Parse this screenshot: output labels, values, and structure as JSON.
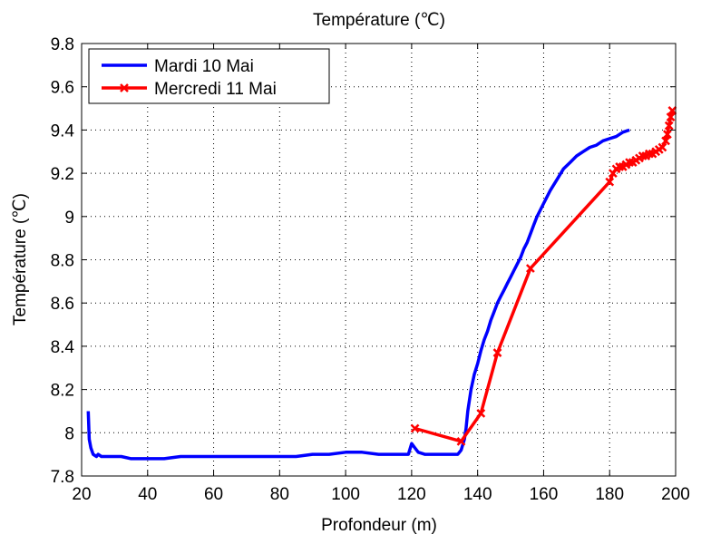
{
  "chart_data": {
    "type": "line",
    "title": "Température (℃)",
    "xlabel": "Profondeur (m)",
    "ylabel": "Température (℃)",
    "xlim": [
      20,
      200
    ],
    "ylim": [
      7.8,
      9.8
    ],
    "xticks": [
      20,
      40,
      60,
      80,
      100,
      120,
      140,
      160,
      180,
      200
    ],
    "yticks": [
      7.8,
      8,
      8.2,
      8.4,
      8.6,
      8.8,
      9,
      9.2,
      9.4,
      9.6,
      9.8
    ],
    "ytick_labels": [
      "7.8",
      "8",
      "8.2",
      "8.4",
      "8.6",
      "8.8",
      "9",
      "9.2",
      "9.4",
      "9.6",
      "9.8"
    ],
    "grid": true,
    "legend_position": "top-left",
    "series": [
      {
        "name": "Mardi 10 Mai",
        "color": "#0000ff",
        "marker": "none",
        "x": [
          22,
          22.3,
          22.8,
          23.5,
          24.5,
          25,
          26,
          28,
          30,
          32,
          35,
          38,
          40,
          45,
          50,
          55,
          60,
          65,
          70,
          75,
          80,
          85,
          90,
          95,
          100,
          105,
          110,
          115,
          119,
          120,
          121,
          122,
          124,
          126,
          128,
          130,
          132,
          134,
          135,
          136,
          136.5,
          137,
          137.5,
          138,
          139,
          140,
          141,
          142,
          143,
          144,
          145,
          146,
          147,
          148,
          149,
          150,
          151,
          152,
          153,
          154,
          155,
          156,
          157,
          158,
          159,
          160,
          162,
          164,
          166,
          168,
          170,
          172,
          174,
          176,
          178,
          180,
          182,
          184,
          186
        ],
        "y": [
          8.1,
          7.97,
          7.93,
          7.9,
          7.89,
          7.9,
          7.89,
          7.89,
          7.89,
          7.89,
          7.88,
          7.88,
          7.88,
          7.88,
          7.89,
          7.89,
          7.89,
          7.89,
          7.89,
          7.89,
          7.89,
          7.89,
          7.9,
          7.9,
          7.91,
          7.91,
          7.9,
          7.9,
          7.9,
          7.95,
          7.93,
          7.91,
          7.9,
          7.9,
          7.9,
          7.9,
          7.9,
          7.9,
          7.92,
          7.97,
          8.02,
          8.1,
          8.15,
          8.2,
          8.27,
          8.32,
          8.38,
          8.43,
          8.47,
          8.52,
          8.56,
          8.6,
          8.63,
          8.66,
          8.69,
          8.72,
          8.75,
          8.78,
          8.81,
          8.85,
          8.88,
          8.92,
          8.96,
          9.0,
          9.03,
          9.06,
          9.12,
          9.17,
          9.22,
          9.25,
          9.28,
          9.3,
          9.32,
          9.33,
          9.35,
          9.36,
          9.37,
          9.39,
          9.4
        ]
      },
      {
        "name": "Mercredi 11 Mai",
        "color": "#ff0000",
        "marker": "x",
        "x": [
          121,
          135,
          141,
          146,
          156,
          180,
          181,
          182,
          183,
          184,
          185,
          186,
          187,
          188,
          189,
          190,
          191,
          192,
          193,
          194,
          195,
          196,
          197,
          197.5,
          198,
          198.5,
          199
        ],
        "y": [
          8.02,
          7.96,
          8.09,
          8.37,
          8.76,
          9.16,
          9.2,
          9.22,
          9.23,
          9.23,
          9.24,
          9.25,
          9.25,
          9.26,
          9.27,
          9.28,
          9.28,
          9.29,
          9.29,
          9.3,
          9.31,
          9.32,
          9.35,
          9.38,
          9.42,
          9.46,
          9.49
        ]
      }
    ]
  }
}
